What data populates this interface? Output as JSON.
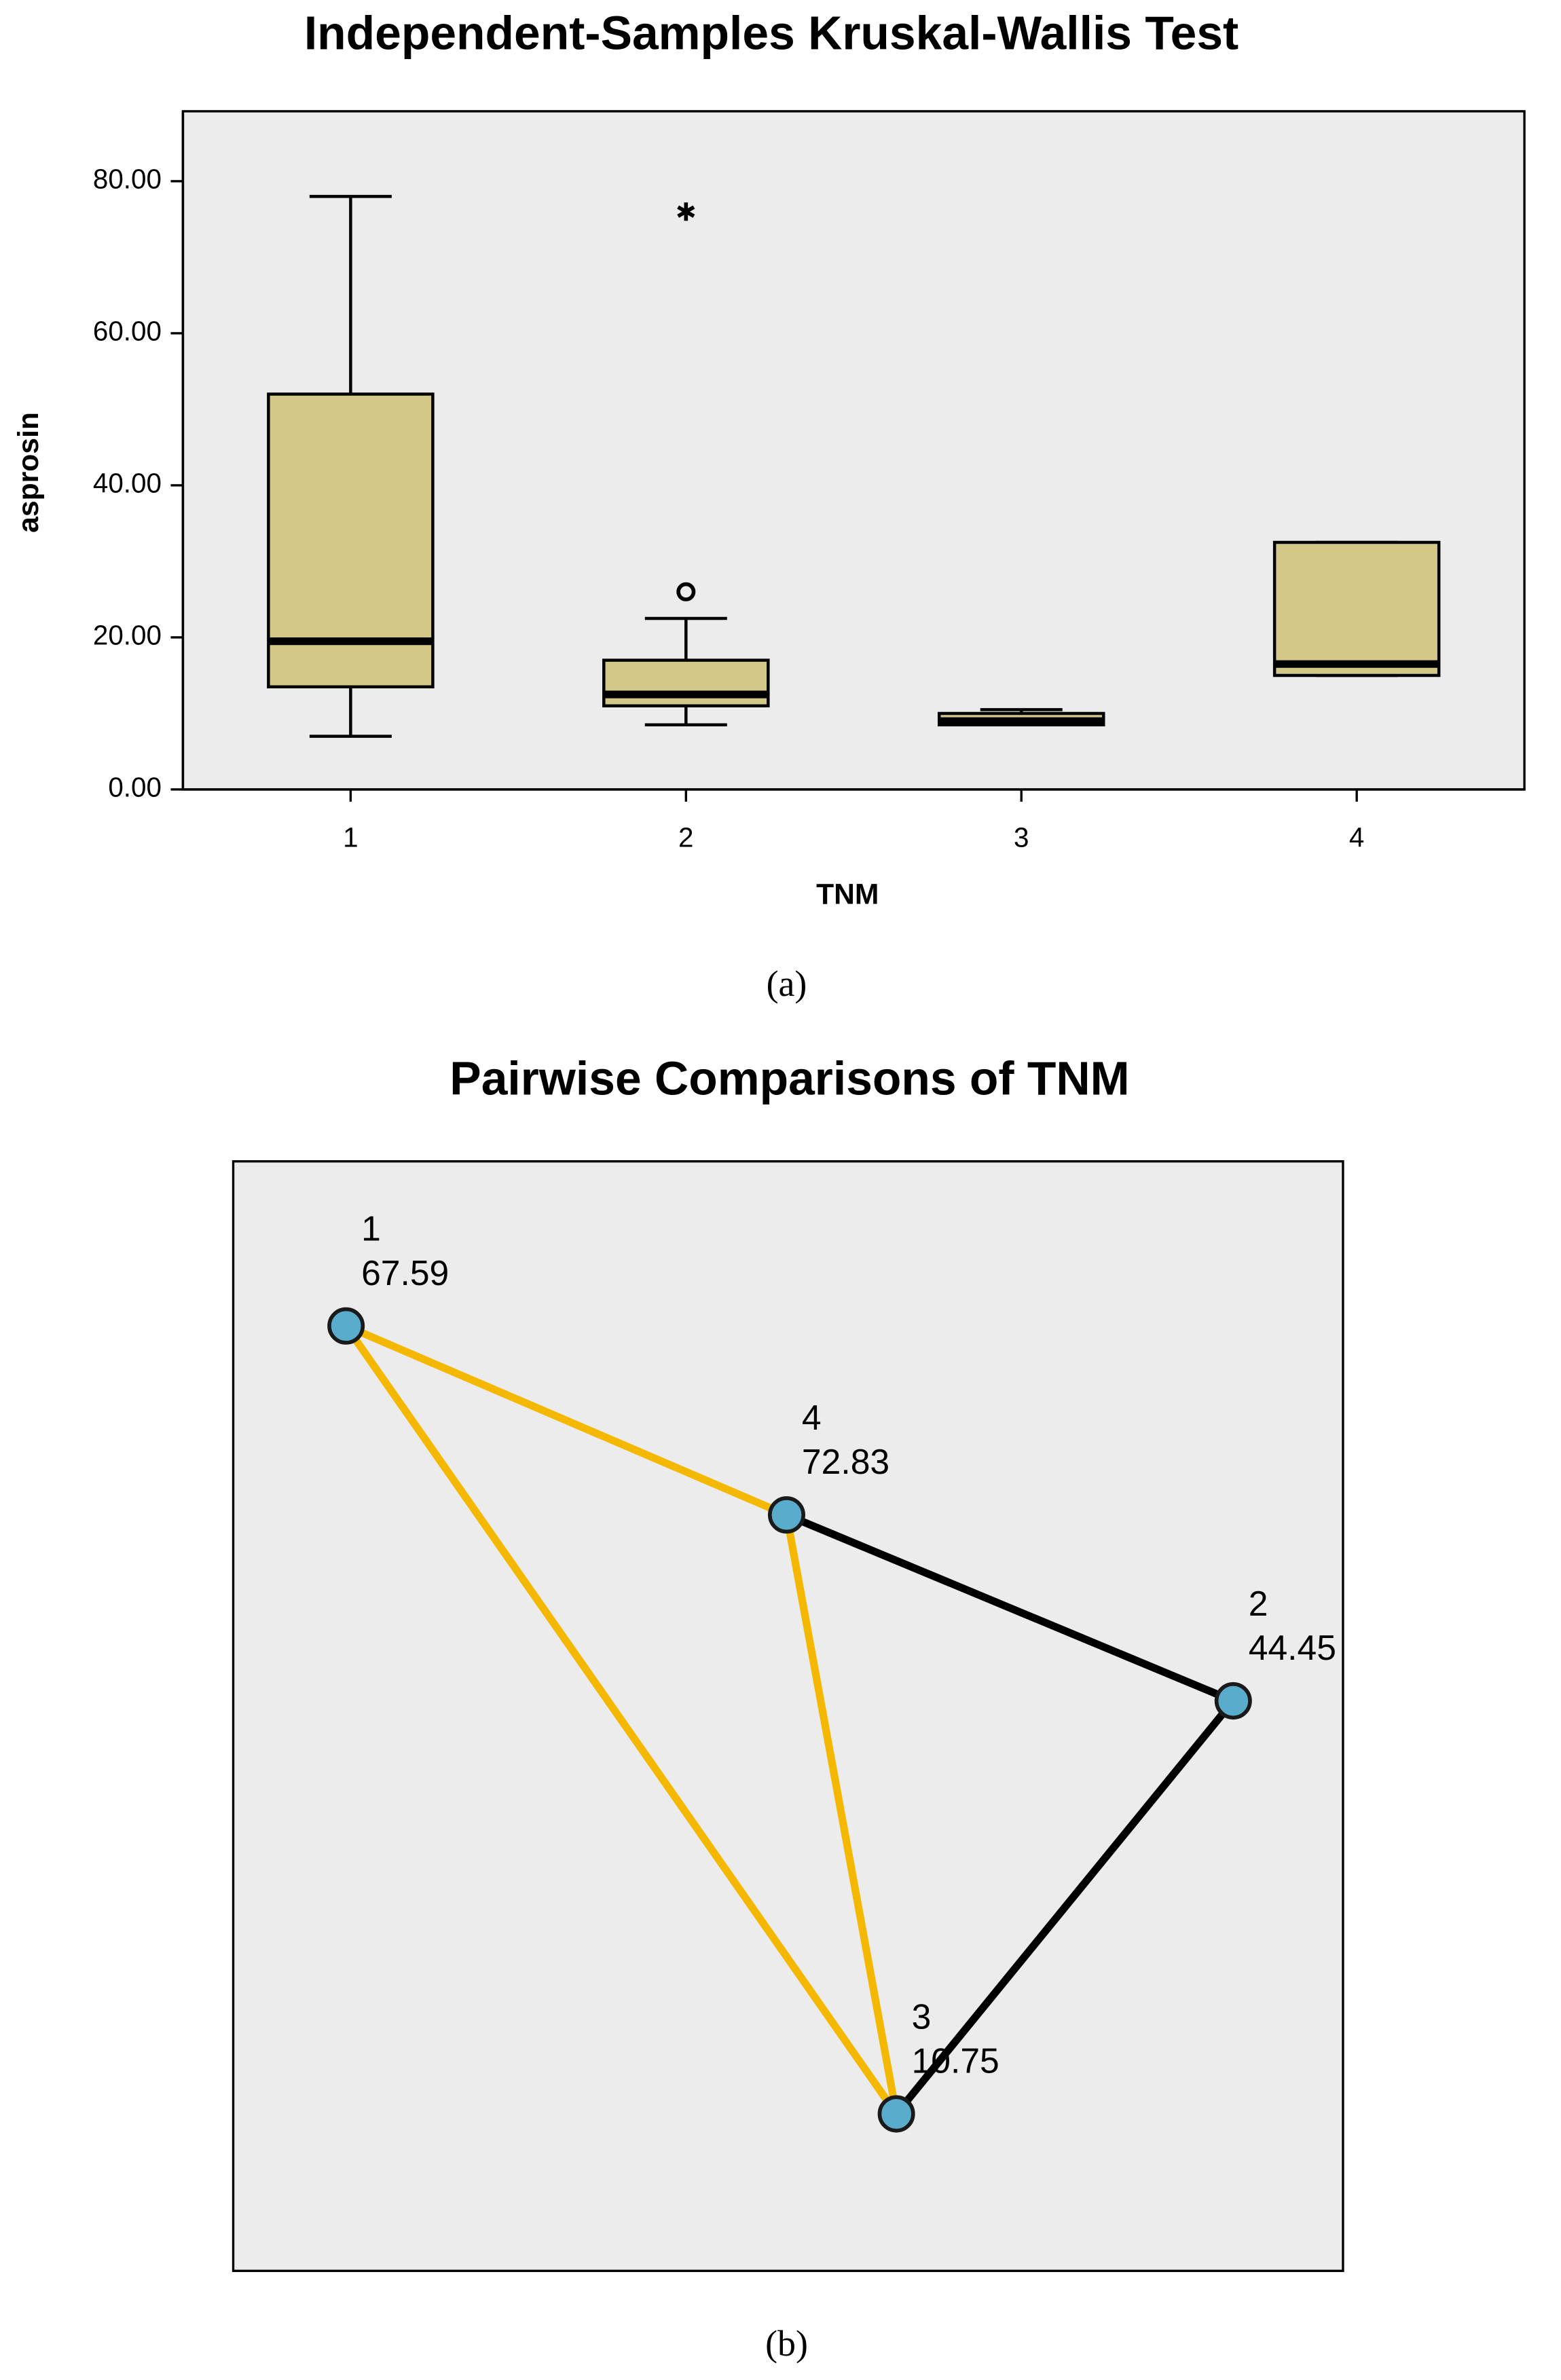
{
  "chart_data": [
    {
      "type": "box",
      "title": "Independent-Samples Kruskal-Wallis Test",
      "x_label": "TNM",
      "y_label": "asprosin",
      "caption": "(a)",
      "categories": [
        "1",
        "2",
        "3",
        "4"
      ],
      "boxes": [
        {
          "min": 7,
          "q1": 13.5,
          "median": 19.5,
          "q3": 52,
          "max": 78,
          "outliers": []
        },
        {
          "min": 8.5,
          "q1": 11,
          "median": 12.5,
          "q3": 17,
          "max": 22.5,
          "outliers": [
            {
              "value": 26,
              "marker": "circle"
            },
            {
              "value": 76,
              "marker": "star"
            }
          ]
        },
        {
          "min": 8.5,
          "q1": 8.5,
          "median": 9,
          "q3": 10,
          "max": 10.5,
          "outliers": []
        },
        {
          "min": 15,
          "q1": 15,
          "median": 16.5,
          "q3": 32.5,
          "max": 32.5,
          "outliers": []
        }
      ],
      "color": "#d3c888",
      "background": "#ececec",
      "ylim": [
        0,
        89.2
      ],
      "yticks": [
        {
          "value": 0,
          "label": "0.00"
        },
        {
          "value": 20,
          "label": "20.00"
        },
        {
          "value": 40,
          "label": "40.00"
        },
        {
          "value": 60,
          "label": "60.00"
        },
        {
          "value": 80,
          "label": "80.00"
        }
      ]
    },
    {
      "type": "network",
      "title": "Pairwise Comparisons of TNM",
      "caption": "(b)",
      "nodes": [
        {
          "name": "1",
          "value": 67.59
        },
        {
          "name": "2",
          "value": 44.45
        },
        {
          "name": "3",
          "value": 10.75
        },
        {
          "name": "4",
          "value": 72.83
        }
      ],
      "edges": [
        {
          "from": 0,
          "to": 3,
          "color": "#f5b800"
        },
        {
          "from": 0,
          "to": 2,
          "color": "#f5b800"
        },
        {
          "from": 3,
          "to": 2,
          "color": "#f5b800"
        },
        {
          "from": 3,
          "to": 1,
          "color": "#000000"
        },
        {
          "from": 1,
          "to": 2,
          "color": "#000000"
        }
      ],
      "node_color": "#5aaccc",
      "background": "#ececec"
    }
  ]
}
